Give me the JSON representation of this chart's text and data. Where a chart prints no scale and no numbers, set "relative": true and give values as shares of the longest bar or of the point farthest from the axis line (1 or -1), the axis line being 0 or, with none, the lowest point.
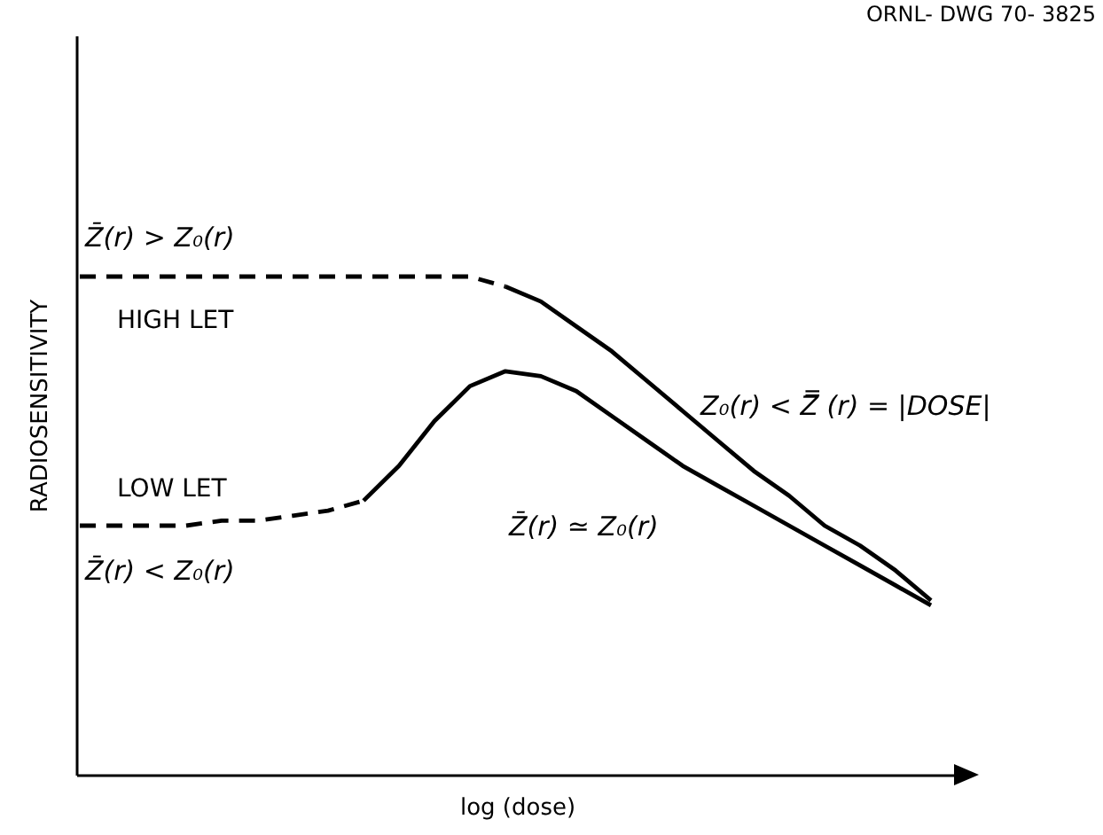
{
  "chart_data": {
    "type": "line",
    "relative": true,
    "xlabel": "log (dose)",
    "ylabel": "RADIOSENSITIVITY",
    "tick_labels": false,
    "grid": false,
    "legend": false,
    "marker": "none",
    "categories": [
      null,
      null,
      null,
      null,
      null,
      null,
      null,
      null,
      null,
      null,
      null,
      null,
      null,
      null,
      null,
      null,
      null,
      null,
      null,
      null,
      null,
      null,
      null,
      null,
      null
    ],
    "series": [
      {
        "name": "HIGH LET",
        "color": "#000000",
        "line_style": "dashed",
        "values": [
          1,
          1,
          1,
          1,
          1,
          1,
          1,
          1,
          1,
          1,
          1,
          1,
          0.98,
          null,
          null,
          null,
          null,
          null,
          null,
          null,
          null,
          null,
          null,
          null,
          null
        ]
      },
      {
        "color": "#000000",
        "line_style": "solid",
        "values": [
          null,
          null,
          null,
          null,
          null,
          null,
          null,
          null,
          null,
          null,
          null,
          null,
          0.98,
          0.95,
          0.9,
          0.85,
          0.79,
          0.73,
          0.67,
          0.61,
          0.56,
          0.5,
          0.46,
          0.41,
          0.35
        ]
      },
      {
        "name": "LOW LET",
        "color": "#000000",
        "line_style": "dashed",
        "values": [
          0.5,
          0.5,
          0.5,
          0.5,
          0.51,
          0.51,
          0.52,
          0.53,
          0.55,
          null,
          null,
          null,
          null,
          null,
          null,
          null,
          null,
          null,
          null,
          null,
          null,
          null,
          null,
          null,
          null
        ]
      },
      {
        "color": "#000000",
        "line_style": "solid",
        "values": [
          null,
          null,
          null,
          null,
          null,
          null,
          null,
          null,
          0.55,
          0.62,
          0.71,
          0.78,
          0.81,
          0.8,
          0.77,
          0.72,
          0.67,
          0.62,
          0.58,
          0.54,
          0.5,
          0.46,
          0.42,
          0.38,
          0.34
        ]
      }
    ],
    "annotations": [
      "ORNL- DWG 70- 3825",
      "Z̄(r) > Z₀(r)",
      "Z̄(r) < Z₀(r)",
      "Z₀(r) < Z̿ (r) = |DOSE|",
      "Z̄(r) ≃ Z₀(r)"
    ]
  }
}
